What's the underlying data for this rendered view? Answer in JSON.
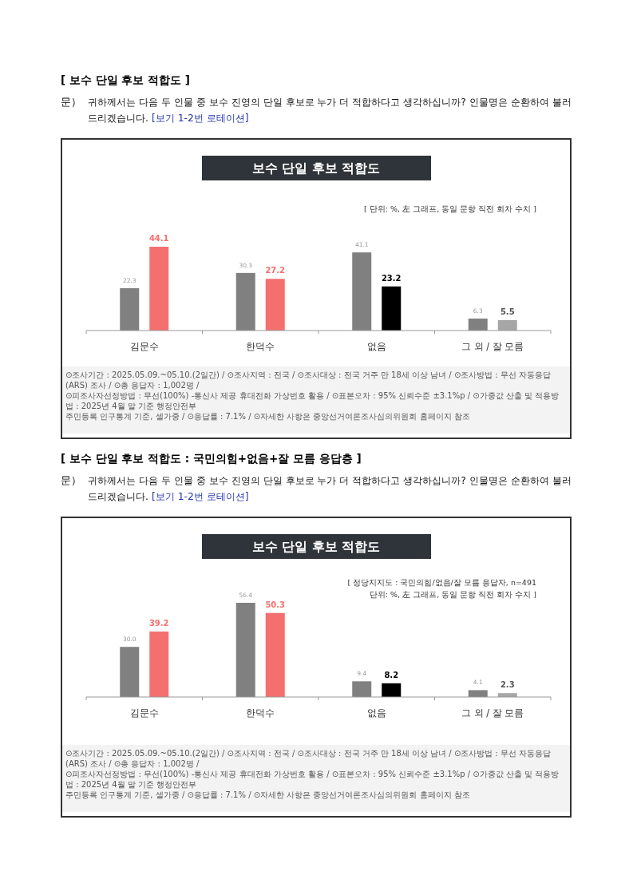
{
  "chart_data": [
    {
      "type": "bar",
      "title": "보수 단일 후보 적합도",
      "subtitle": "[ 단위: %, 左 그래프, 동일 문항 직전 회차 수치 ]",
      "categories": [
        "김문수",
        "한덕수",
        "없음",
        "그 외 / 잘 모름"
      ],
      "series": [
        {
          "color": "#808080",
          "values": [
            22.3,
            30.3,
            41.1,
            6.3
          ]
        },
        {
          "colors": [
            "#f4706f",
            "#f4706f",
            "#000000",
            "#a6a6a6"
          ],
          "values": [
            44.1,
            27.2,
            23.2,
            5.5
          ]
        }
      ],
      "data_labels": true,
      "annotations": [
        "[ 보수 단일 후보 적합도 ]",
        "문）",
        "귀하께서는 다음 두 인물 중 보수 진영의 단일 후보로 누가 더 적합하다고 생각하십니까? 인물명은 순환하여 불러드리겠습니다.",
        "[보기 1-2번 로테이션]",
        "⊙조사기간 : 2025.05.09.~05.10.(2일간) / ⊙조사지역 : 전국 / ⊙조사대상 : 전국 거주 만 18세 이상 남녀 / ⊙조사방법 : 무선 자동응답(ARS) 조사 / ⊙총 응답자 : 1,002명 /",
        "⊙피조사자선정방법 : 무선(100%) -통신사 제공 휴대전화 가상번호 활용 / ⊙표본오차 : 95% 신뢰수준 ±3.1%p / ⊙가중값 산출 및 적용방법 : 2025년 4월 말 기준 행정안전부",
        "주민등록 인구통계 기준, 셀가중 / ⊙응답률 : 7.1% / ⊙자세한 사항은 중앙선거여론조사심의위원회 홈페이지 참조"
      ]
    },
    {
      "type": "bar",
      "title": "보수 단일 후보 적합도",
      "subtitle": "[ 정당지지도 : 국민의힘/없음/잘 모름 응답자, n=491\n단위: %, 左 그래프, 동일 문항 직전 회차 수치 ]",
      "categories": [
        "김문수",
        "한덕수",
        "없음",
        "그 외 / 잘 모름"
      ],
      "series": [
        {
          "color": "#808080",
          "values": [
            30.0,
            56.4,
            9.4,
            4.1
          ],
          "value_labels": [
            "30.0",
            "56.4",
            "9.4",
            "4.1"
          ]
        },
        {
          "colors": [
            "#f4706f",
            "#f4706f",
            "#000000",
            "#a6a6a6"
          ],
          "values": [
            39.2,
            50.3,
            8.2,
            2.3
          ]
        }
      ],
      "data_labels": true,
      "annotations": [
        "[ 보수 단일 후보 적합도 : 국민의힘+없음+잘 모름 응답층 ]",
        "문）",
        "귀하께서는 다음 두 인물 중 보수 진영의 단일 후보로 누가 더 적합하다고 생각하십니까? 인물명은 순환하여 불러드리겠습니다.",
        "[보기 1-2번 로테이션]",
        "⊙조사기간 : 2025.05.09.~05.10.(2일간) / ⊙조사지역 : 전국 / ⊙조사대상 : 전국 거주 만 18세 이상 남녀 / ⊙조사방법 : 무선 자동응답(ARS) 조사 / ⊙총 응답자 : 1,002명 /",
        "⊙피조사자선정방법 : 무선(100%) -통신사 제공 휴대전화 가상번호 활용 / ⊙표본오차 : 95% 신뢰수준 ±3.1%p / ⊙가중값 산출 및 적용방법 : 2025년 4월 말 기준 행정안전부",
        "주민등록 인구통계 기준, 셀가중 / ⊙응답률 : 7.1% / ⊙자세한 사항은 중앙선거여론조사심의위원회 홈페이지 참조"
      ]
    }
  ]
}
